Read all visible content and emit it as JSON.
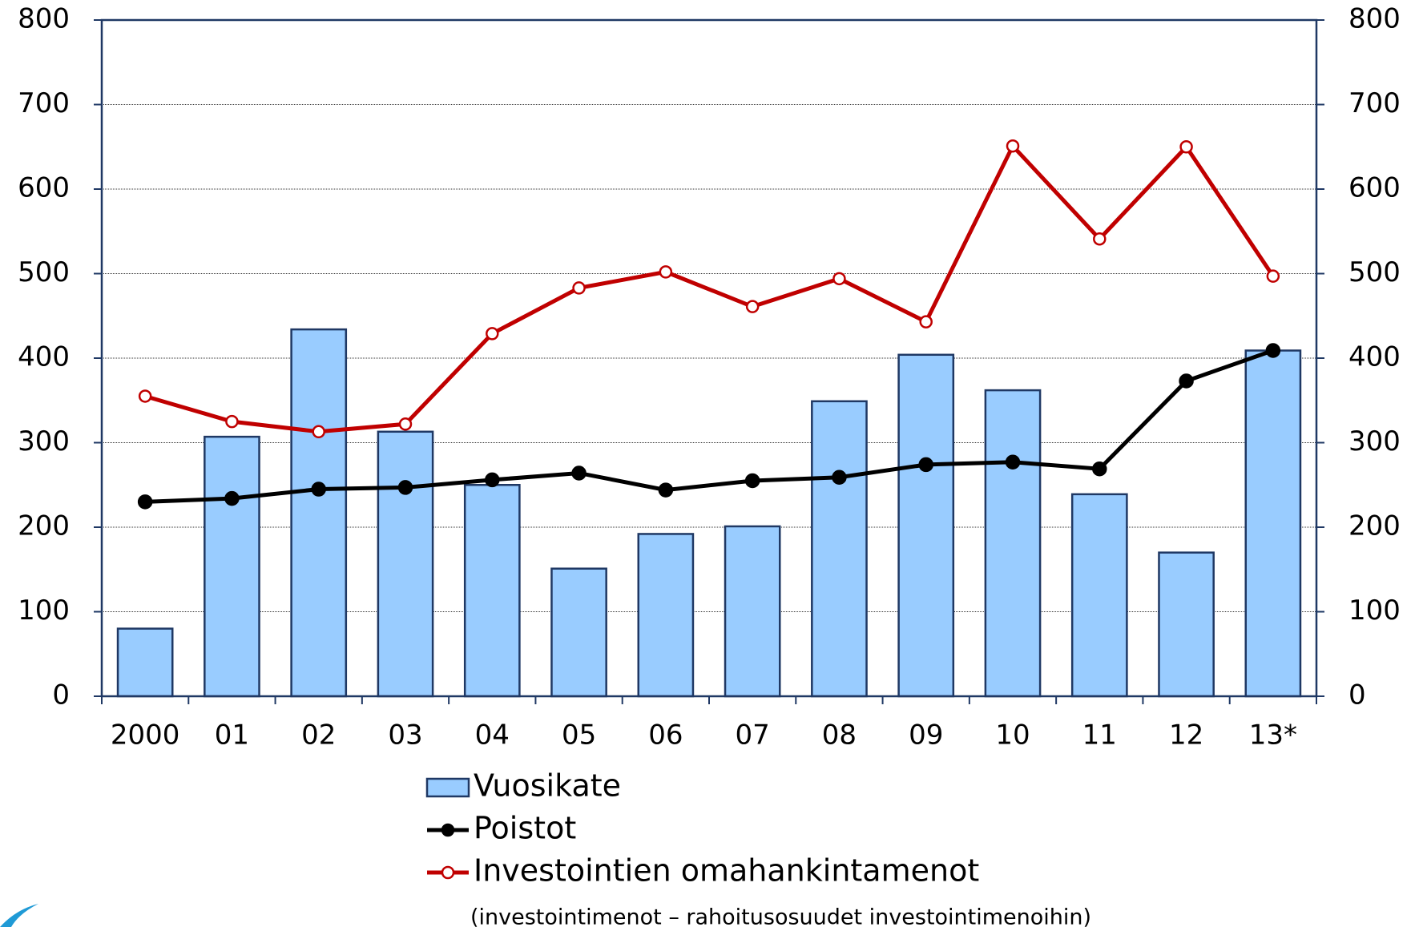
{
  "chart_data": {
    "type": "bar_line",
    "categories": [
      "2000",
      "01",
      "02",
      "03",
      "04",
      "05",
      "06",
      "07",
      "08",
      "09",
      "10",
      "11",
      "12",
      "13*"
    ],
    "series": [
      {
        "name": "Vuosikate",
        "type": "bar",
        "color": "#99ccff",
        "values": [
          80,
          307,
          434,
          313,
          250,
          151,
          192,
          201,
          349,
          404,
          362,
          239,
          170,
          409
        ]
      },
      {
        "name": "Poistot",
        "type": "line",
        "color": "#000000",
        "values": [
          230,
          234,
          245,
          247,
          256,
          264,
          244,
          255,
          259,
          274,
          277,
          269,
          373,
          409
        ]
      },
      {
        "name": "Investointien omahankintamenot",
        "type": "line",
        "color": "#c00000",
        "marker": "hollow",
        "values": [
          355,
          325,
          313,
          322,
          429,
          483,
          502,
          461,
          494,
          443,
          651,
          541,
          650,
          497
        ]
      }
    ],
    "legend_note": "(investointimenot – rahoitusosuudet investointimenoihin)",
    "ylim": [
      0,
      800
    ],
    "yticks": [
      0,
      100,
      200,
      300,
      400,
      500,
      600,
      700,
      800
    ],
    "y2lim": [
      0,
      800
    ],
    "y2ticks": [
      0,
      100,
      200,
      300,
      400,
      500,
      600,
      700,
      800
    ],
    "grid": true
  }
}
